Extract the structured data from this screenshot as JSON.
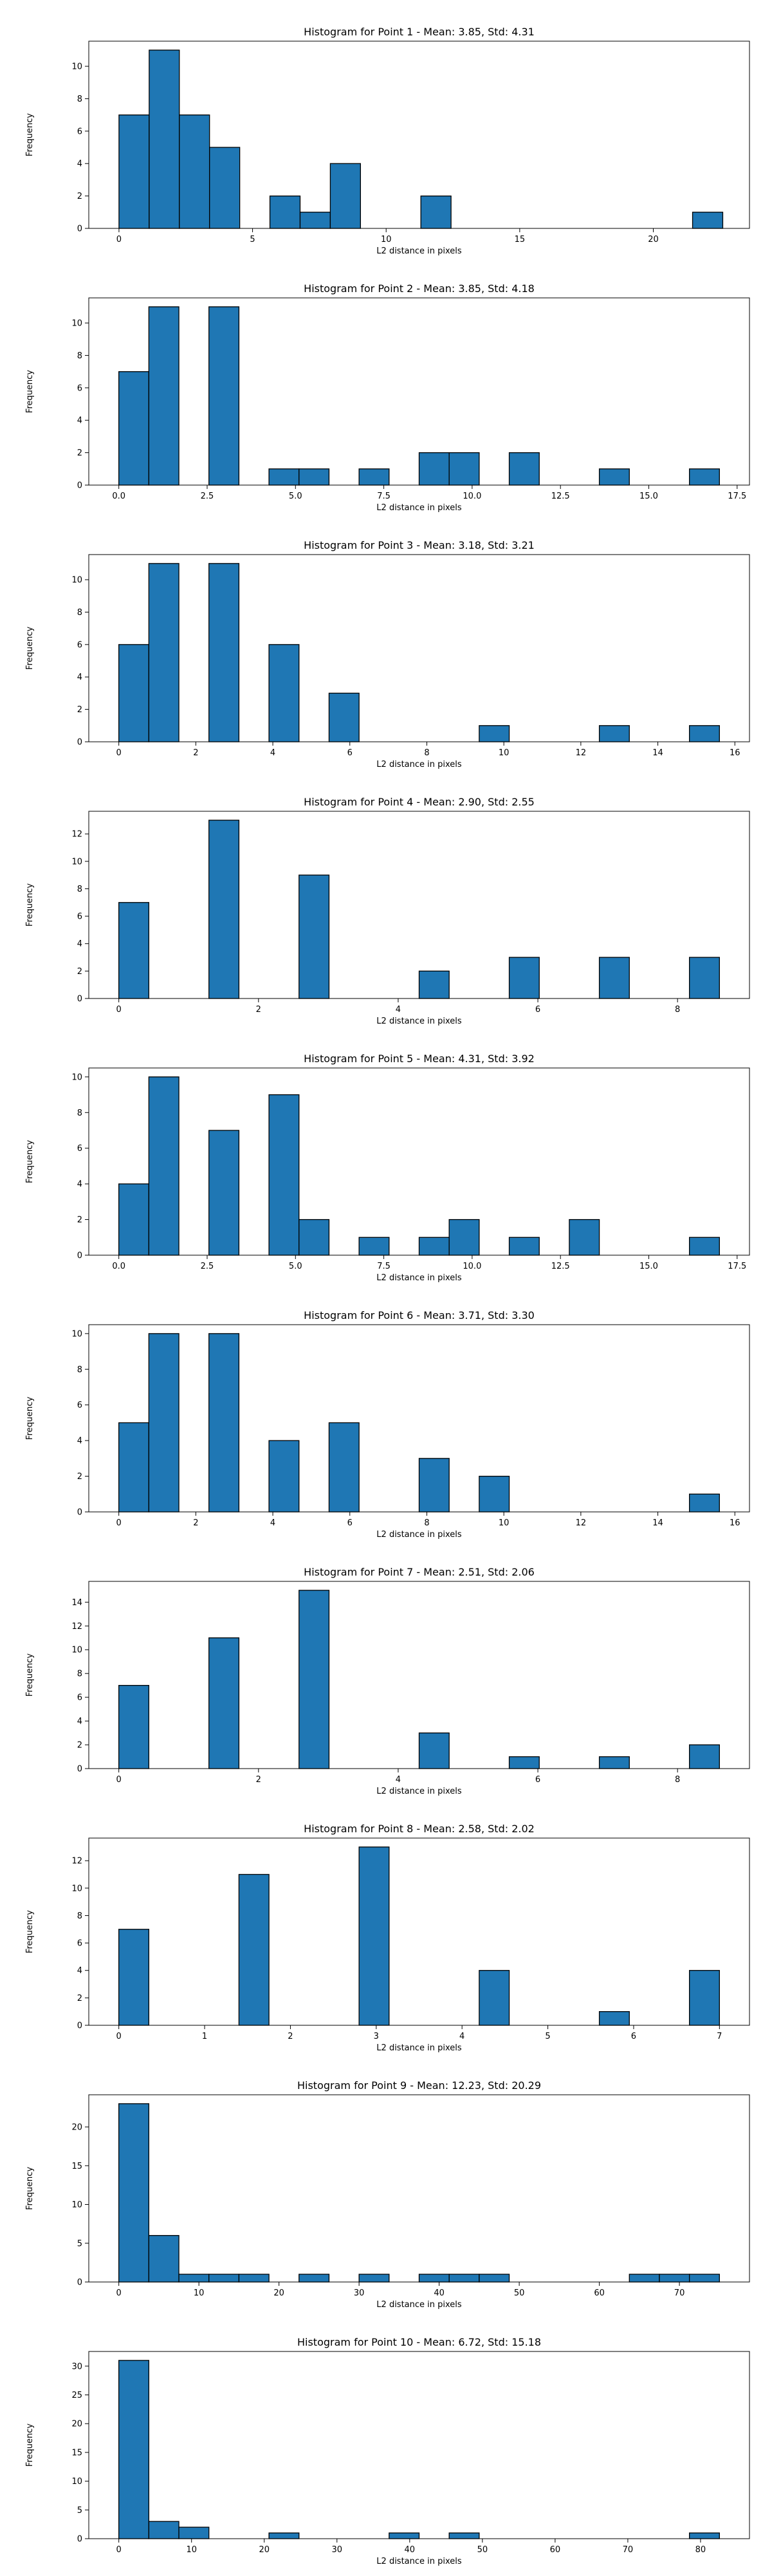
{
  "colors": {
    "bar_fill": "#1f77b4",
    "bar_edge": "#000000",
    "axis": "#000000",
    "background": "#ffffff"
  },
  "chart_data": [
    {
      "type": "bar",
      "title": "Histogram for Point 1 - Mean: 3.85, Std: 4.31",
      "xlabel": "L2 distance in pixels",
      "ylabel": "Frequency",
      "xlim": [
        -1.13,
        23.6
      ],
      "ylim": [
        0,
        11.55
      ],
      "xticks": [
        0,
        5,
        10,
        15,
        20
      ],
      "xtick_labels": [
        "0",
        "5",
        "10",
        "15",
        "20"
      ],
      "yticks": [
        0,
        2,
        4,
        6,
        8,
        10
      ],
      "ytick_labels": [
        "0",
        "2",
        "4",
        "6",
        "8",
        "10"
      ],
      "bin_edges": [
        0,
        1.13,
        2.26,
        3.39,
        4.52,
        5.65,
        6.78,
        7.91,
        9.04,
        10.17,
        11.3,
        12.43,
        13.56,
        14.69,
        15.82,
        16.95,
        18.08,
        19.21,
        20.34,
        21.47,
        22.6
      ],
      "values": [
        7,
        11,
        7,
        5,
        0,
        2,
        1,
        4,
        0,
        0,
        2,
        0,
        0,
        0,
        0,
        0,
        0,
        0,
        0,
        1
      ],
      "grid": false,
      "legend": "none"
    },
    {
      "type": "bar",
      "title": "Histogram for Point 2 - Mean: 3.85, Std: 4.18",
      "xlabel": "L2 distance in pixels",
      "ylabel": "Frequency",
      "xlim": [
        -0.85,
        17.85
      ],
      "ylim": [
        0,
        11.55
      ],
      "xticks": [
        0,
        2.5,
        5,
        7.5,
        10,
        12.5,
        15,
        17.5
      ],
      "xtick_labels": [
        "0.0",
        "2.5",
        "5.0",
        "7.5",
        "10.0",
        "12.5",
        "15.0",
        "17.5"
      ],
      "yticks": [
        0,
        2,
        4,
        6,
        8,
        10
      ],
      "ytick_labels": [
        "0",
        "2",
        "4",
        "6",
        "8",
        "10"
      ],
      "bin_edges": [
        0,
        0.85,
        1.7,
        2.55,
        3.4,
        4.25,
        5.1,
        5.95,
        6.8,
        7.65,
        8.5,
        9.35,
        10.2,
        11.05,
        11.9,
        12.75,
        13.6,
        14.45,
        15.3,
        16.15,
        17.0
      ],
      "values": [
        7,
        11,
        0,
        11,
        0,
        1,
        1,
        0,
        1,
        0,
        2,
        2,
        0,
        2,
        0,
        0,
        1,
        0,
        0,
        1
      ],
      "grid": false,
      "legend": "none"
    },
    {
      "type": "bar",
      "title": "Histogram for Point 3 - Mean: 3.18, Std: 3.21",
      "xlabel": "L2 distance in pixels",
      "ylabel": "Frequency",
      "xlim": [
        -0.78,
        16.38
      ],
      "ylim": [
        0,
        11.55
      ],
      "xticks": [
        0,
        2,
        4,
        6,
        8,
        10,
        12,
        14,
        16
      ],
      "xtick_labels": [
        "0",
        "2",
        "4",
        "6",
        "8",
        "10",
        "12",
        "14",
        "16"
      ],
      "yticks": [
        0,
        2,
        4,
        6,
        8,
        10
      ],
      "ytick_labels": [
        "0",
        "2",
        "4",
        "6",
        "8",
        "10"
      ],
      "bin_edges": [
        0,
        0.78,
        1.56,
        2.34,
        3.12,
        3.9,
        4.68,
        5.46,
        6.24,
        7.02,
        7.8,
        8.58,
        9.36,
        10.14,
        10.92,
        11.7,
        12.48,
        13.26,
        14.04,
        14.82,
        15.6
      ],
      "values": [
        6,
        11,
        0,
        11,
        0,
        6,
        0,
        3,
        0,
        0,
        0,
        0,
        1,
        0,
        0,
        0,
        1,
        0,
        0,
        1
      ],
      "grid": false,
      "legend": "none"
    },
    {
      "type": "bar",
      "title": "Histogram for Point 4 - Mean: 2.90, Std: 2.55",
      "xlabel": "L2 distance in pixels",
      "ylabel": "Frequency",
      "xlim": [
        -0.43,
        9.03
      ],
      "ylim": [
        0,
        13.65
      ],
      "xticks": [
        0,
        2,
        4,
        6,
        8
      ],
      "xtick_labels": [
        "0",
        "2",
        "4",
        "6",
        "8"
      ],
      "yticks": [
        0,
        2,
        4,
        6,
        8,
        10,
        12
      ],
      "ytick_labels": [
        "0",
        "2",
        "4",
        "6",
        "8",
        "10",
        "12"
      ],
      "bin_edges": [
        0,
        0.43,
        0.86,
        1.29,
        1.72,
        2.15,
        2.58,
        3.01,
        3.44,
        3.87,
        4.3,
        4.73,
        5.16,
        5.59,
        6.02,
        6.45,
        6.88,
        7.31,
        7.74,
        8.17,
        8.6
      ],
      "values": [
        7,
        0,
        0,
        13,
        0,
        0,
        9,
        0,
        0,
        0,
        2,
        0,
        0,
        3,
        0,
        0,
        3,
        0,
        0,
        3
      ],
      "grid": false,
      "legend": "none"
    },
    {
      "type": "bar",
      "title": "Histogram for Point 5 - Mean: 4.31, Std: 3.92",
      "xlabel": "L2 distance in pixels",
      "ylabel": "Frequency",
      "xlim": [
        -0.85,
        17.85
      ],
      "ylim": [
        0,
        10.5
      ],
      "xticks": [
        0,
        2.5,
        5,
        7.5,
        10,
        12.5,
        15,
        17.5
      ],
      "xtick_labels": [
        "0.0",
        "2.5",
        "5.0",
        "7.5",
        "10.0",
        "12.5",
        "15.0",
        "17.5"
      ],
      "yticks": [
        0,
        2,
        4,
        6,
        8,
        10
      ],
      "ytick_labels": [
        "0",
        "2",
        "4",
        "6",
        "8",
        "10"
      ],
      "bin_edges": [
        0,
        0.85,
        1.7,
        2.55,
        3.4,
        4.25,
        5.1,
        5.95,
        6.8,
        7.65,
        8.5,
        9.35,
        10.2,
        11.05,
        11.9,
        12.75,
        13.6,
        14.45,
        15.3,
        16.15,
        17.0
      ],
      "values": [
        4,
        10,
        0,
        7,
        0,
        9,
        2,
        0,
        1,
        0,
        1,
        2,
        0,
        1,
        0,
        2,
        0,
        0,
        0,
        1
      ],
      "grid": false,
      "legend": "none"
    },
    {
      "type": "bar",
      "title": "Histogram for Point 6 - Mean: 3.71, Std: 3.30",
      "xlabel": "L2 distance in pixels",
      "ylabel": "Frequency",
      "xlim": [
        -0.78,
        16.38
      ],
      "ylim": [
        0,
        10.5
      ],
      "xticks": [
        0,
        2,
        4,
        6,
        8,
        10,
        12,
        14,
        16
      ],
      "xtick_labels": [
        "0",
        "2",
        "4",
        "6",
        "8",
        "10",
        "12",
        "14",
        "16"
      ],
      "yticks": [
        0,
        2,
        4,
        6,
        8,
        10
      ],
      "ytick_labels": [
        "0",
        "2",
        "4",
        "6",
        "8",
        "10"
      ],
      "bin_edges": [
        0,
        0.78,
        1.56,
        2.34,
        3.12,
        3.9,
        4.68,
        5.46,
        6.24,
        7.02,
        7.8,
        8.58,
        9.36,
        10.14,
        10.92,
        11.7,
        12.48,
        13.26,
        14.04,
        14.82,
        15.6
      ],
      "values": [
        5,
        10,
        0,
        10,
        0,
        4,
        0,
        5,
        0,
        0,
        3,
        0,
        2,
        0,
        0,
        0,
        0,
        0,
        0,
        1
      ],
      "grid": false,
      "legend": "none"
    },
    {
      "type": "bar",
      "title": "Histogram for Point 7 - Mean: 2.51, Std: 2.06",
      "xlabel": "L2 distance in pixels",
      "ylabel": "Frequency",
      "xlim": [
        -0.43,
        9.03
      ],
      "ylim": [
        0,
        15.75
      ],
      "xticks": [
        0,
        2,
        4,
        6,
        8
      ],
      "xtick_labels": [
        "0",
        "2",
        "4",
        "6",
        "8"
      ],
      "yticks": [
        0,
        2,
        4,
        6,
        8,
        10,
        12,
        14
      ],
      "ytick_labels": [
        "0",
        "2",
        "4",
        "6",
        "8",
        "10",
        "12",
        "14"
      ],
      "bin_edges": [
        0,
        0.43,
        0.86,
        1.29,
        1.72,
        2.15,
        2.58,
        3.01,
        3.44,
        3.87,
        4.3,
        4.73,
        5.16,
        5.59,
        6.02,
        6.45,
        6.88,
        7.31,
        7.74,
        8.17,
        8.6
      ],
      "values": [
        7,
        0,
        0,
        11,
        0,
        0,
        15,
        0,
        0,
        0,
        3,
        0,
        0,
        1,
        0,
        0,
        1,
        0,
        0,
        2
      ],
      "grid": false,
      "legend": "none"
    },
    {
      "type": "bar",
      "title": "Histogram for Point 8 - Mean: 2.58, Std: 2.02",
      "xlabel": "L2 distance in pixels",
      "ylabel": "Frequency",
      "xlim": [
        -0.35,
        7.35
      ],
      "ylim": [
        0,
        13.65
      ],
      "xticks": [
        0,
        1,
        2,
        3,
        4,
        5,
        6,
        7
      ],
      "xtick_labels": [
        "0",
        "1",
        "2",
        "3",
        "4",
        "5",
        "6",
        "7"
      ],
      "yticks": [
        0,
        2,
        4,
        6,
        8,
        10,
        12
      ],
      "ytick_labels": [
        "0",
        "2",
        "4",
        "6",
        "8",
        "10",
        "12"
      ],
      "bin_edges": [
        0,
        0.35,
        0.7,
        1.05,
        1.4,
        1.75,
        2.1,
        2.45,
        2.8,
        3.15,
        3.5,
        3.85,
        4.2,
        4.55,
        4.9,
        5.25,
        5.6,
        5.95,
        6.3,
        6.65,
        7.0
      ],
      "values": [
        7,
        0,
        0,
        0,
        11,
        0,
        0,
        0,
        13,
        0,
        0,
        0,
        4,
        0,
        0,
        0,
        1,
        0,
        0,
        4
      ],
      "grid": false,
      "legend": "none"
    },
    {
      "type": "bar",
      "title": "Histogram for Point 9 - Mean: 12.23, Std: 20.29",
      "xlabel": "L2 distance in pixels",
      "ylabel": "Frequency",
      "xlim": [
        -3.75,
        78.75
      ],
      "ylim": [
        0,
        24.15
      ],
      "xticks": [
        0,
        10,
        20,
        30,
        40,
        50,
        60,
        70
      ],
      "xtick_labels": [
        "0",
        "10",
        "20",
        "30",
        "40",
        "50",
        "60",
        "70"
      ],
      "yticks": [
        0,
        5,
        10,
        15,
        20
      ],
      "ytick_labels": [
        "0",
        "5",
        "10",
        "15",
        "20"
      ],
      "bin_edges": [
        0,
        3.75,
        7.5,
        11.25,
        15.0,
        18.75,
        22.5,
        26.25,
        30.0,
        33.75,
        37.5,
        41.25,
        45.0,
        48.75,
        52.5,
        56.25,
        60.0,
        63.75,
        67.5,
        71.25,
        75.0
      ],
      "values": [
        23,
        6,
        1,
        1,
        1,
        0,
        1,
        0,
        1,
        0,
        1,
        1,
        1,
        0,
        0,
        0,
        0,
        1,
        1,
        1
      ],
      "grid": false,
      "legend": "none"
    },
    {
      "type": "bar",
      "title": "Histogram for Point 10 - Mean: 6.72, Std: 15.18",
      "xlabel": "L2 distance in pixels",
      "ylabel": "Frequency",
      "xlim": [
        -4.13,
        86.73
      ],
      "ylim": [
        0,
        32.55
      ],
      "xticks": [
        0,
        10,
        20,
        30,
        40,
        50,
        60,
        70,
        80
      ],
      "xtick_labels": [
        "0",
        "10",
        "20",
        "30",
        "40",
        "50",
        "60",
        "70",
        "80"
      ],
      "yticks": [
        0,
        5,
        10,
        15,
        20,
        25,
        30
      ],
      "ytick_labels": [
        "0",
        "5",
        "10",
        "15",
        "20",
        "25",
        "30"
      ],
      "bin_edges": [
        0,
        4.13,
        8.26,
        12.39,
        16.52,
        20.65,
        24.78,
        28.91,
        33.04,
        37.17,
        41.3,
        45.43,
        49.56,
        53.69,
        57.82,
        61.95,
        66.08,
        70.21,
        74.34,
        78.47,
        82.6
      ],
      "values": [
        31,
        3,
        2,
        0,
        0,
        1,
        0,
        0,
        0,
        1,
        0,
        1,
        0,
        0,
        0,
        0,
        0,
        0,
        0,
        1
      ],
      "grid": false,
      "legend": "none"
    }
  ]
}
